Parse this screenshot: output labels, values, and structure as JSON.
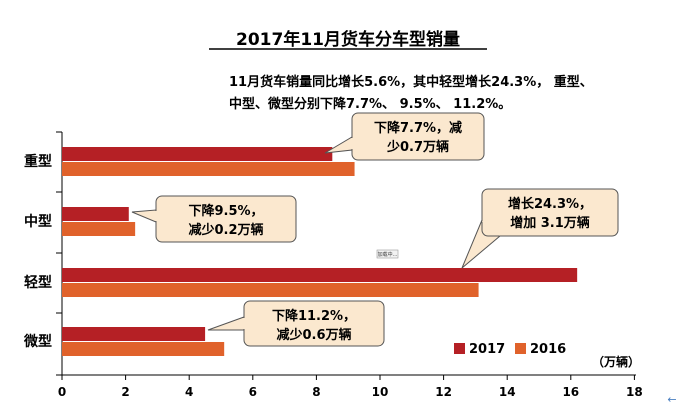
{
  "chart_data": {
    "type": "bar",
    "orientation": "horizontal",
    "title": "2017年11月货车分车型销量",
    "description_lines": [
      "11月货车销量同比增长5.6%，其中轻型增长24.3%， 重型、",
      "中型、微型分别下降7.7%、 9.5%、 11.2%。"
    ],
    "categories": [
      "重型",
      "中型",
      "轻型",
      "微型"
    ],
    "series": [
      {
        "name": "2017",
        "color": "#b52025",
        "values": [
          8.5,
          2.1,
          16.2,
          4.5
        ]
      },
      {
        "name": "2016",
        "color": "#e0622b",
        "values": [
          9.2,
          2.3,
          13.1,
          5.1
        ]
      }
    ],
    "xlim": [
      0,
      18
    ],
    "xticks": [
      "0",
      "2",
      "4",
      "6",
      "8",
      "10",
      "12",
      "14",
      "16",
      "18"
    ],
    "unit": "（万辆）",
    "legend_position": "bottom-right",
    "grid": false,
    "annotations": [
      {
        "category": "重型",
        "lines": [
          "下降7.7%，减",
          "少0.7万辆"
        ]
      },
      {
        "category": "中型",
        "lines": [
          "下降9.5%，",
          "减少0.2万辆"
        ]
      },
      {
        "category": "轻型",
        "lines": [
          "增长24.3%，",
          "增加 3.1万辆"
        ]
      },
      {
        "category": "微型",
        "lines": [
          "下降11.2%，",
          "减少0.6万辆"
        ]
      }
    ],
    "callout_fill": "#fbe8cf",
    "widget_label": "加载中..."
  }
}
